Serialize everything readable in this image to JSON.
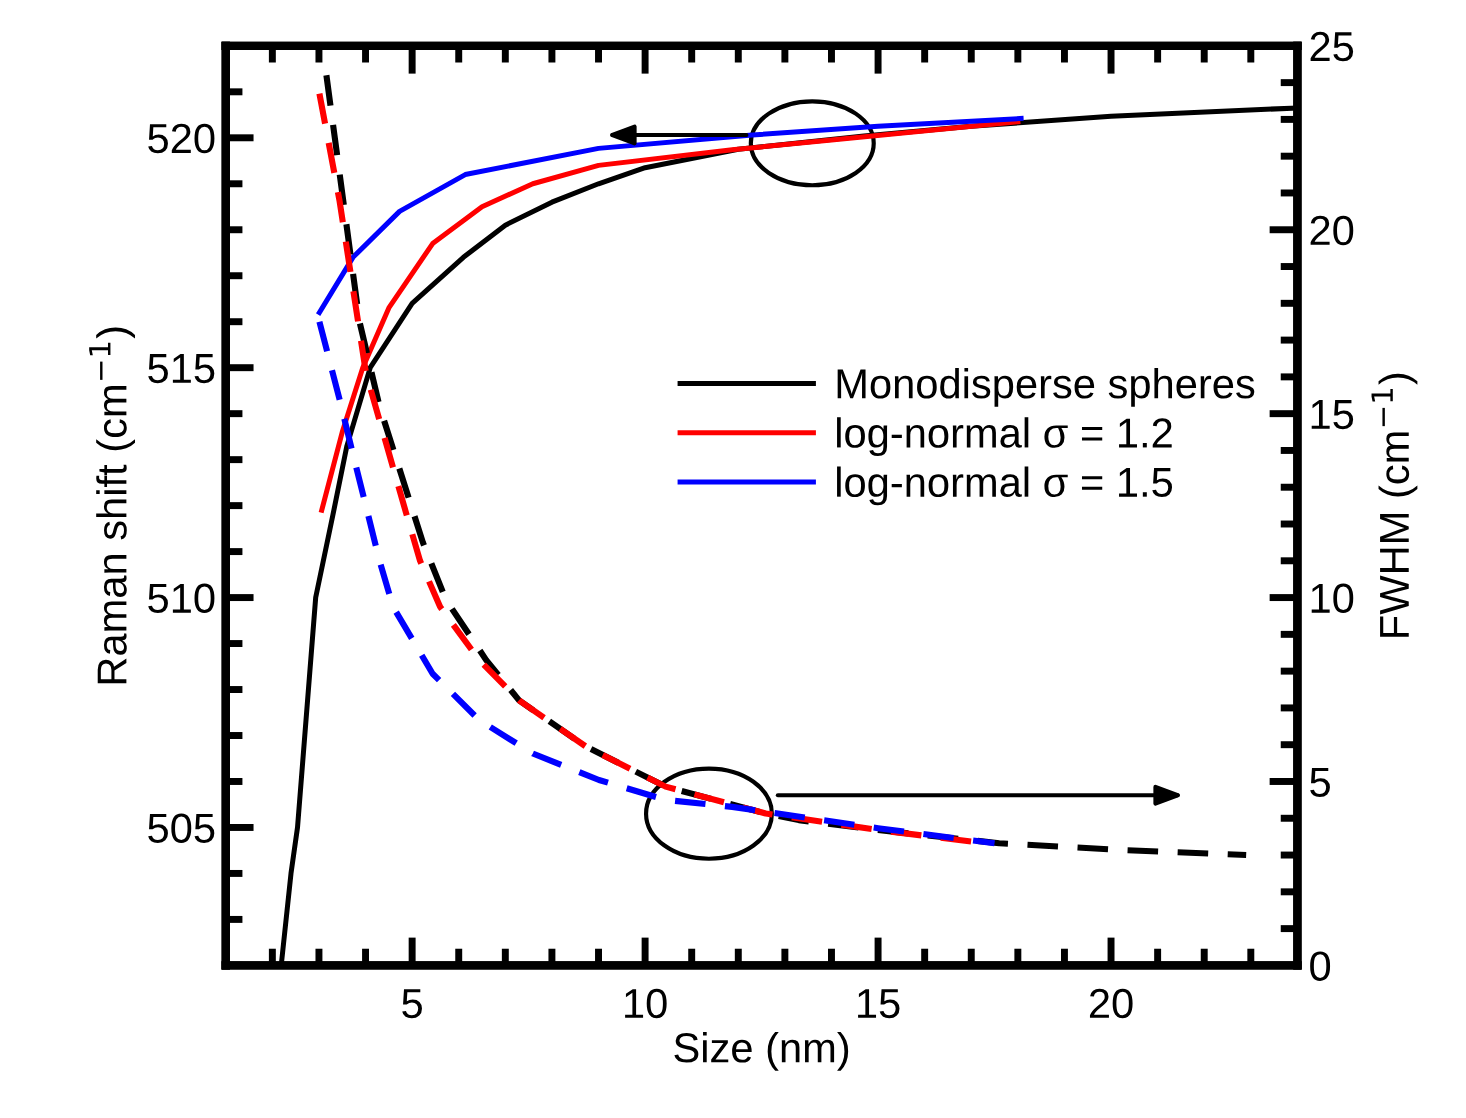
{
  "chart_data": {
    "type": "line",
    "xlabel": "Size (nm)",
    "ylabel": "Raman shift (cm$^{−1}$)",
    "y2label": "FWHM (cm$^{−1}$)",
    "xlim": [
      1,
      24
    ],
    "xticks": [
      5,
      10,
      15,
      20
    ],
    "ylim": [
      502,
      522
    ],
    "yticks": [
      505,
      510,
      515,
      520
    ],
    "y2lim": [
      0,
      25
    ],
    "y2ticks": [
      0,
      5,
      10,
      15,
      20,
      25
    ],
    "grid": false,
    "legend": "right",
    "marker": "none",
    "series": [
      {
        "name": "Monodisperse spheres",
        "color": "#000000",
        "line_style": "solid",
        "x": [
          2.19,
          2.4,
          2.54,
          2.93,
          3.3,
          3.6,
          4.1,
          5,
          6.1,
          7,
          8,
          9,
          10,
          12,
          14.7,
          17,
          20,
          24
        ],
        "values": [
          502,
          504,
          505,
          510,
          511.8,
          513.3,
          515,
          516.4,
          517.4,
          518.1,
          518.6,
          519.0,
          519.35,
          519.75,
          520.04,
          520.25,
          520.47,
          520.65
        ]
      },
      {
        "name": "log-normal σ = 1.2",
        "color": "#ff0000",
        "line_style": "solid",
        "x": [
          3.06,
          3.5,
          3.94,
          4.5,
          5.44,
          6.5,
          7.59,
          9,
          11.87,
          14,
          18
        ],
        "values": [
          511.9,
          513.6,
          515,
          516.3,
          517.7,
          518.5,
          519.0,
          519.4,
          519.74,
          519.95,
          520.35
        ]
      },
      {
        "name": "log-normal σ = 1.5",
        "color": "#0000ff",
        "line_style": "solid",
        "x": [
          3.01,
          3.73,
          4.73,
          6.14,
          9.0,
          12.3,
          15,
          18.07
        ],
        "values": [
          516.2,
          517.4,
          518.4,
          519.2,
          519.77,
          520.06,
          520.25,
          520.42
        ]
      },
      {
        "color": "#000000",
        "axis": "y2",
        "line_style": "dashed",
        "x": [
          3.16,
          3.87,
          4.3,
          5.23,
          5.73,
          6.59,
          7.3,
          8.73,
          10.44,
          12.59,
          13.3,
          15,
          17.6,
          20.2,
          22.9
        ],
        "values": [
          24.2,
          17.5,
          15.2,
          11.5,
          9.93,
          8.3,
          7.2,
          5.95,
          4.86,
          4.13,
          3.95,
          3.68,
          3.32,
          3.14,
          3.0
        ]
      },
      {
        "color": "#ff0000",
        "axis": "y2",
        "line_style": "dashed",
        "x": [
          3.01,
          3.44,
          4.01,
          4.87,
          5.17,
          5.6,
          6.44,
          7.3,
          8.73,
          10.44,
          12.59,
          15,
          17.1
        ],
        "values": [
          23.7,
          20.8,
          16.1,
          12.3,
          11.0,
          9.75,
          8.3,
          7.2,
          5.95,
          4.86,
          4.13,
          3.68,
          3.35
        ]
      },
      {
        "color": "#0000ff",
        "axis": "y2",
        "line_style": "dashed",
        "x": [
          3.01,
          3.44,
          3.73,
          4.3,
          4.59,
          5.44,
          6.44,
          7.59,
          9.01,
          10.44,
          11.87,
          15,
          17.5
        ],
        "values": [
          17.5,
          15.4,
          13.9,
          11.0,
          9.75,
          7.93,
          6.67,
          5.76,
          5.04,
          4.5,
          4.31,
          3.73,
          3.32
        ]
      }
    ]
  }
}
